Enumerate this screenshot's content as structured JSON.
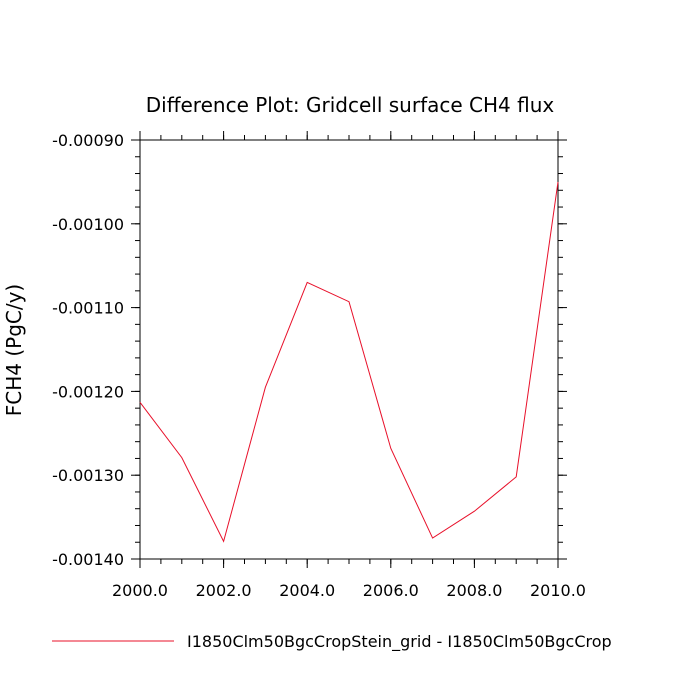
{
  "chart_data": {
    "type": "line",
    "title": "Difference Plot: Gridcell surface CH4 flux",
    "xlabel": "",
    "ylabel": "FCH4  (PgC/y)",
    "xlim": [
      2000.0,
      2010.0
    ],
    "ylim": [
      -0.0014,
      -0.0009
    ],
    "x_ticks": [
      2000.0,
      2002.0,
      2004.0,
      2006.0,
      2008.0,
      2010.0
    ],
    "x_tick_labels": [
      "2000.0",
      "2002.0",
      "2004.0",
      "2006.0",
      "2008.0",
      "2010.0"
    ],
    "y_ticks": [
      -0.0009,
      -0.001,
      -0.0011,
      -0.0012,
      -0.0013,
      -0.0014
    ],
    "y_tick_labels": [
      "-0.00090",
      "-0.00100",
      "-0.00110",
      "-0.00120",
      "-0.00130",
      "-0.00140"
    ],
    "grid": false,
    "legend_position": "bottom",
    "series": [
      {
        "name": "I1850Clm50BgcCropStein_grid - I1850Clm50BgcCrop",
        "color": "#e8102a",
        "x": [
          2000,
          2001,
          2002,
          2003,
          2004,
          2005,
          2006,
          2007,
          2008,
          2009,
          2010
        ],
        "values": [
          -0.001213,
          -0.001279,
          -0.001379,
          -0.001195,
          -0.00107,
          -0.001093,
          -0.001268,
          -0.001375,
          -0.001343,
          -0.001302,
          -0.00095
        ]
      }
    ]
  }
}
